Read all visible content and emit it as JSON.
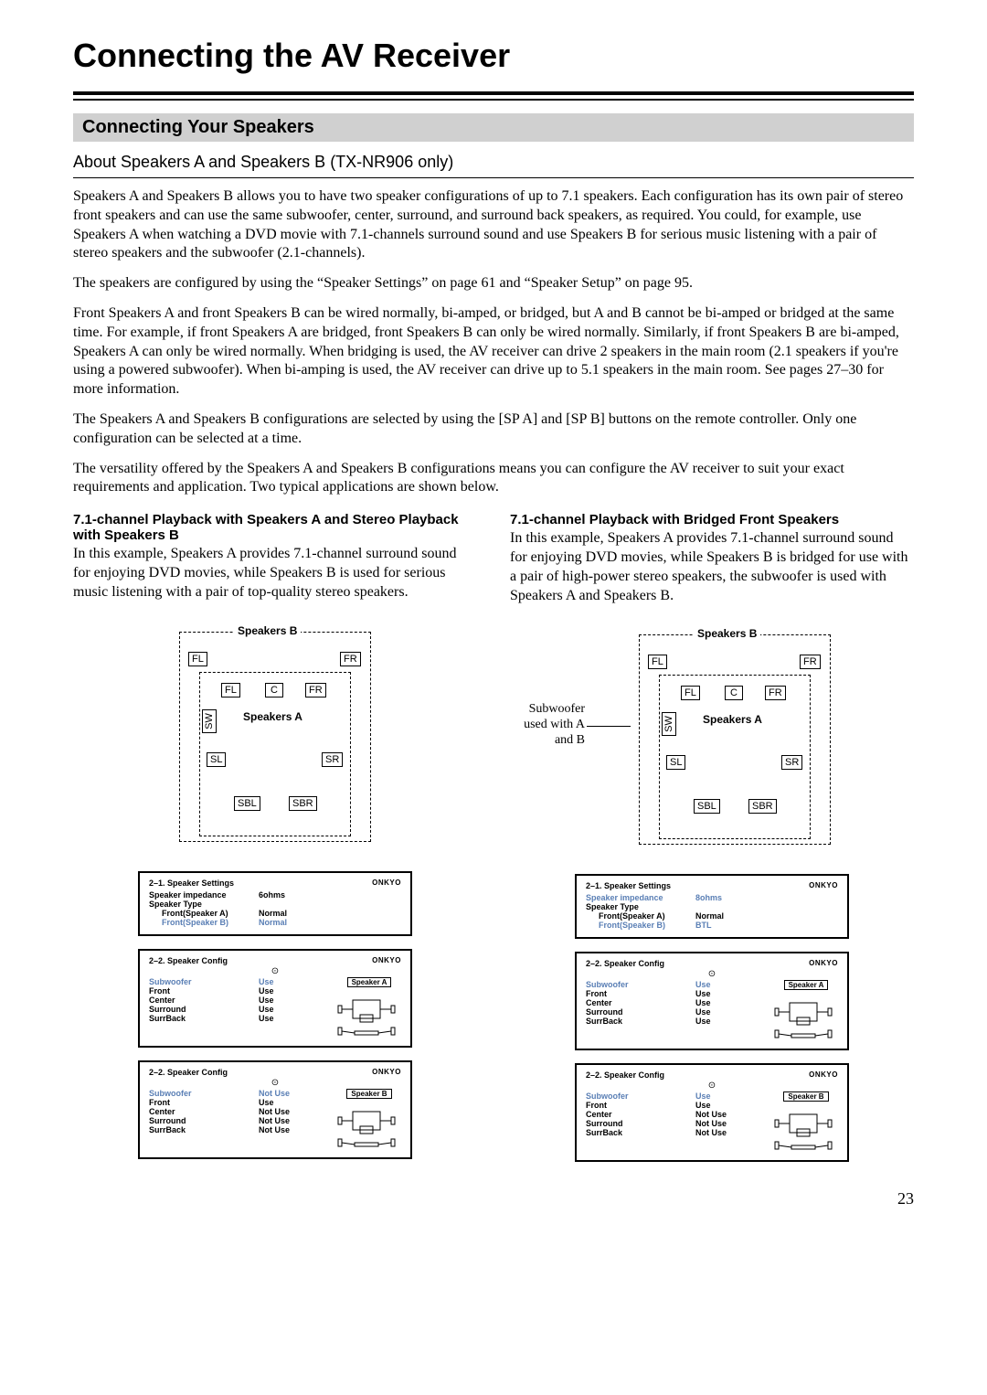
{
  "pageTitle": "Connecting the AV Receiver",
  "sectionHead": "Connecting Your Speakers",
  "subHead": "About Speakers A and Speakers B (TX-NR906 only)",
  "para1": "Speakers A and Speakers B allows you to have two speaker configurations of up to 7.1 speakers. Each configuration has its own pair of stereo front speakers and can use the same subwoofer, center, surround, and surround back speakers, as required. You could, for example, use Speakers A when watching a DVD movie with 7.1-channels surround sound and use Speakers B for serious music listening with a pair of stereo speakers and the subwoofer (2.1-channels).",
  "para2": "The speakers are configured by using the “Speaker Settings” on page 61 and “Speaker Setup” on page 95.",
  "para3": "Front Speakers A and front Speakers B can be wired normally, bi-amped, or bridged, but A and B cannot be bi-amped or bridged at the same time. For example, if front Speakers A are bridged, front Speakers B can only be wired normally. Similarly, if front Speakers B are bi-amped, Speakers A can only be wired normally. When bridging is used, the AV receiver can drive 2 speakers in the main room (2.1 speakers if you're using a powered subwoofer). When bi-amping is used, the AV receiver can drive up to 5.1 speakers in the main room. See pages 27–30 for more information.",
  "para4": "The Speakers A and Speakers B configurations are selected by using the [SP A] and [SP B] buttons on the remote controller. Only one configuration can be selected at a time.",
  "para5": "The versatility offered by the Speakers A and Speakers B configurations means you can configure the AV receiver to suit your exact requirements and application. Two typical applications are shown below.",
  "examples": {
    "left": {
      "head": "7.1-channel Playback with Speakers A and Stereo Playback with Speakers B",
      "para": "In this example, Speakers A provides 7.1-channel surround sound for enjoying DVD movies, while Speakers B is used for serious music listening with a pair of top-quality stereo speakers.",
      "diagram": {
        "labelB": "Speakers B",
        "labelA": "Speakers A",
        "note": "",
        "boxes": {
          "FL_B": "FL",
          "FR_B": "FR",
          "FL_A": "FL",
          "C": "C",
          "FR_A": "FR",
          "SW": "SW",
          "SL": "SL",
          "SR": "SR",
          "SBL": "SBL",
          "SBR": "SBR"
        }
      },
      "panels": [
        {
          "title": "2–1.  Speaker Settings",
          "brand": "ONKYO",
          "rows": [
            {
              "lbl": "Speaker impedance",
              "val": "6ohms",
              "hl": false,
              "indent": false
            },
            {
              "lbl": "Speaker Type",
              "val": "",
              "hl": false,
              "indent": false
            },
            {
              "lbl": "Front(Speaker A)",
              "val": "Normal",
              "hl": false,
              "indent": true
            },
            {
              "lbl": "Front(Speaker B)",
              "val": "Normal",
              "hl": true,
              "indent": true
            }
          ],
          "tag": "",
          "room": false
        },
        {
          "title": "2–2.  Speaker Config",
          "brand": "ONKYO",
          "dot": true,
          "rows": [
            {
              "lbl": "Subwoofer",
              "val": "Use",
              "hl": true,
              "indent": false
            },
            {
              "lbl": "Front",
              "val": "Use",
              "hl": false,
              "indent": false
            },
            {
              "lbl": "Center",
              "val": "Use",
              "hl": false,
              "indent": false
            },
            {
              "lbl": "Surround",
              "val": "Use",
              "hl": false,
              "indent": false
            },
            {
              "lbl": "SurrBack",
              "val": "Use",
              "hl": false,
              "indent": false
            }
          ],
          "tag": "Speaker A",
          "room": true
        },
        {
          "title": "2–2.  Speaker Config",
          "brand": "ONKYO",
          "dot": true,
          "rows": [
            {
              "lbl": "Subwoofer",
              "val": "Not Use",
              "hl": true,
              "indent": false
            },
            {
              "lbl": "Front",
              "val": "Use",
              "hl": false,
              "indent": false
            },
            {
              "lbl": "Center",
              "val": "Not Use",
              "hl": false,
              "indent": false
            },
            {
              "lbl": "Surround",
              "val": "Not Use",
              "hl": false,
              "indent": false
            },
            {
              "lbl": "SurrBack",
              "val": "Not Use",
              "hl": false,
              "indent": false
            }
          ],
          "tag": "Speaker B",
          "room": true
        }
      ]
    },
    "right": {
      "head": "7.1-channel Playback with Bridged Front Speakers",
      "para": "In this example, Speakers A provides 7.1-channel surround sound for enjoying DVD movies, while Speakers B is bridged for use with a pair of high-power stereo speakers, the subwoofer is used with Speakers A and Speakers B.",
      "diagram": {
        "labelB": "Speakers B",
        "labelA": "Speakers A",
        "note": "Subwoofer\nused with A\nand B",
        "boxes": {
          "FL_B": "FL",
          "FR_B": "FR",
          "FL_A": "FL",
          "C": "C",
          "FR_A": "FR",
          "SW": "SW",
          "SL": "SL",
          "SR": "SR",
          "SBL": "SBL",
          "SBR": "SBR"
        }
      },
      "panels": [
        {
          "title": "2–1.  Speaker Settings",
          "brand": "ONKYO",
          "rows": [
            {
              "lbl": "Speaker impedance",
              "val": "8ohms",
              "hl": true,
              "indent": false
            },
            {
              "lbl": "Speaker Type",
              "val": "",
              "hl": false,
              "indent": false
            },
            {
              "lbl": "Front(Speaker A)",
              "val": "Normal",
              "hl": false,
              "indent": true
            },
            {
              "lbl": "Front(Speaker B)",
              "val": "BTL",
              "hl": true,
              "indent": true
            }
          ],
          "tag": "",
          "room": false
        },
        {
          "title": "2–2.  Speaker Config",
          "brand": "ONKYO",
          "dot": true,
          "rows": [
            {
              "lbl": "Subwoofer",
              "val": "Use",
              "hl": true,
              "indent": false
            },
            {
              "lbl": "Front",
              "val": "Use",
              "hl": false,
              "indent": false
            },
            {
              "lbl": "Center",
              "val": "Use",
              "hl": false,
              "indent": false
            },
            {
              "lbl": "Surround",
              "val": "Use",
              "hl": false,
              "indent": false
            },
            {
              "lbl": "SurrBack",
              "val": "Use",
              "hl": false,
              "indent": false
            }
          ],
          "tag": "Speaker A",
          "room": true
        },
        {
          "title": "2–2.  Speaker Config",
          "brand": "ONKYO",
          "dot": true,
          "rows": [
            {
              "lbl": "Subwoofer",
              "val": "Use",
              "hl": true,
              "indent": false
            },
            {
              "lbl": "Front",
              "val": "Use",
              "hl": false,
              "indent": false
            },
            {
              "lbl": "Center",
              "val": "Not Use",
              "hl": false,
              "indent": false
            },
            {
              "lbl": "Surround",
              "val": "Not Use",
              "hl": false,
              "indent": false
            },
            {
              "lbl": "SurrBack",
              "val": "Not Use",
              "hl": false,
              "indent": false
            }
          ],
          "tag": "Speaker B",
          "room": true
        }
      ]
    }
  },
  "pageNumber": "23",
  "style": {
    "highlightColor": "#5a7fb5",
    "borderColor": "#000000",
    "sectionBg": "#d0d0d0"
  }
}
